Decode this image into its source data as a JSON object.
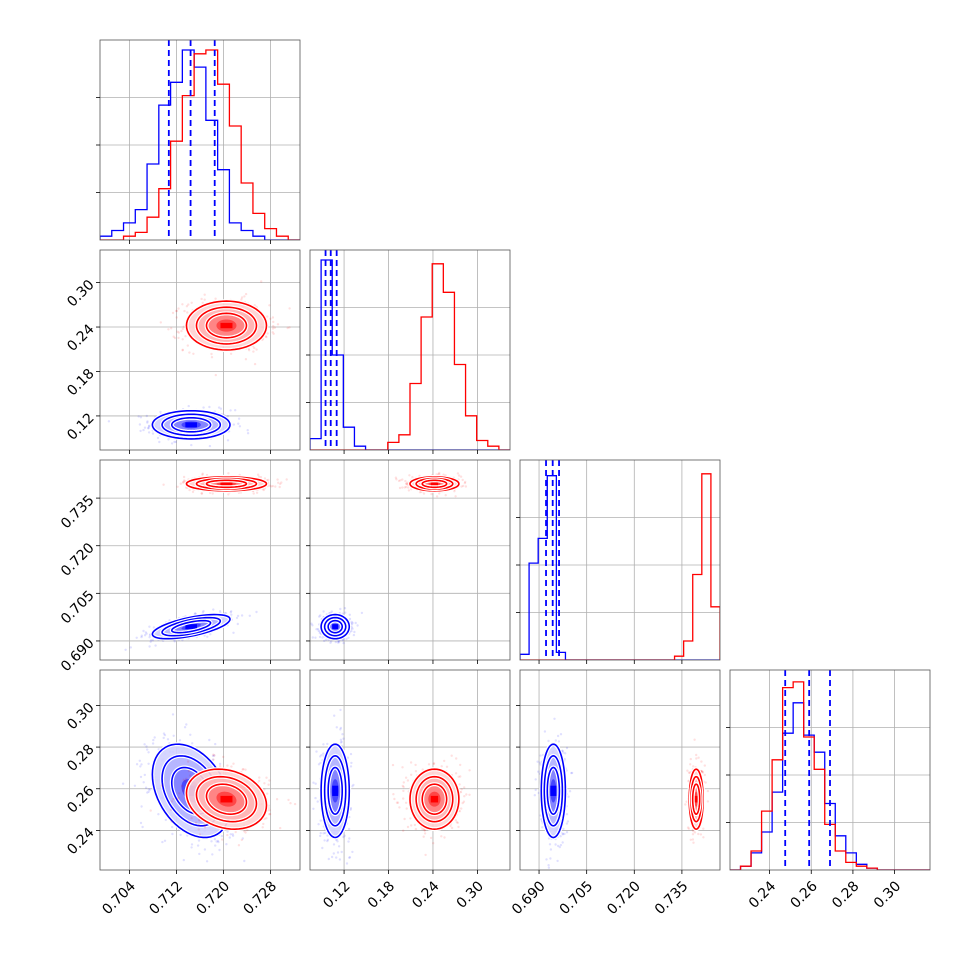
{
  "chart_data": {
    "type": "corner",
    "grid": true,
    "colors": {
      "A": "#0000ff",
      "B": "#ff0000"
    },
    "parameters": [
      {
        "range": [
          0.699,
          0.733
        ],
        "ticks": [
          "0.704",
          "0.712",
          "0.720",
          "0.728"
        ]
      },
      {
        "range": [
          0.074,
          0.344
        ],
        "ticks": [
          "0.12",
          "0.18",
          "0.24",
          "0.30"
        ]
      },
      {
        "range": [
          0.684,
          0.747
        ],
        "ticks": [
          "0.690",
          "0.705",
          "0.720",
          "0.735"
        ]
      },
      {
        "range": [
          0.221,
          0.317
        ],
        "ticks": [
          "0.24",
          "0.26",
          "0.28",
          "0.30"
        ]
      }
    ],
    "series": [
      {
        "key": "A",
        "color": "#0000ff",
        "mean": [
          0.7145,
          0.108,
          0.6945,
          0.259
        ],
        "sd": [
          0.0033,
          0.0095,
          0.0019,
          0.0112
        ],
        "corr": {
          "0-2": 0.62,
          "0-3": -0.35
        },
        "quantiles": [
          [
            "0.7107",
            "0.7144",
            "0.7185"
          ],
          [
            "0.095",
            "0.102",
            "0.110"
          ],
          [
            "0.6922",
            "0.6943",
            "0.6963"
          ],
          [
            "0.2475",
            "0.2590",
            "0.2690"
          ]
        ],
        "histograms": [
          {
            "lo": 0.699,
            "hi": 0.733,
            "counts": [
              0.02,
              0.05,
              0.09,
              0.16,
              0.4,
              0.71,
              0.83,
              1.0,
              0.91,
              0.63,
              0.37,
              0.09,
              0.05,
              0.02,
              0.0,
              0.0,
              0.0
            ]
          },
          {
            "lo": 0.074,
            "hi": 0.344,
            "counts": [
              0.06,
              1.0,
              0.5,
              0.12,
              0.02,
              0.0,
              0.0,
              0.0,
              0.0,
              0.0,
              0.0,
              0.0,
              0.0,
              0.0,
              0.0,
              0.0,
              0.0,
              0.0
            ]
          },
          {
            "lo": 0.684,
            "hi": 0.747,
            "counts": [
              0.03,
              0.51,
              0.64,
              0.97,
              0.04,
              0.0,
              0.0,
              0.0,
              0.0,
              0.0,
              0.0,
              0.0,
              0.0,
              0.0,
              0.0,
              0.0,
              0.0,
              0.0,
              0.0,
              0.0,
              0.0,
              0.0
            ]
          },
          {
            "lo": 0.221,
            "hi": 0.317,
            "counts": [
              0.0,
              0.02,
              0.09,
              0.2,
              0.41,
              0.72,
              0.88,
              0.71,
              0.62,
              0.35,
              0.18,
              0.09,
              0.03,
              0.01,
              0.0,
              0.0,
              0.0,
              0.0,
              0.0
            ]
          }
        ]
      },
      {
        "key": "B",
        "color": "#ff0000",
        "mean": [
          0.7205,
          0.242,
          0.7395,
          0.255
        ],
        "sd": [
          0.0034,
          0.0165,
          0.0011,
          0.0072
        ],
        "corr": {
          "0-3": -0.2
        },
        "histograms": [
          {
            "lo": 0.699,
            "hi": 0.733,
            "counts": [
              0.0,
              0.0,
              0.02,
              0.04,
              0.12,
              0.27,
              0.52,
              0.76,
              0.98,
              1.0,
              0.82,
              0.6,
              0.3,
              0.14,
              0.06,
              0.02,
              0.0
            ]
          },
          {
            "lo": 0.074,
            "hi": 0.344,
            "counts": [
              0.0,
              0.0,
              0.0,
              0.0,
              0.0,
              0.0,
              0.0,
              0.04,
              0.08,
              0.35,
              0.7,
              0.98,
              0.83,
              0.45,
              0.18,
              0.05,
              0.02,
              0.0
            ]
          },
          {
            "lo": 0.684,
            "hi": 0.747,
            "counts": [
              0.0,
              0.0,
              0.0,
              0.0,
              0.0,
              0.0,
              0.0,
              0.0,
              0.0,
              0.0,
              0.0,
              0.0,
              0.0,
              0.0,
              0.0,
              0.0,
              0.0,
              0.02,
              0.1,
              0.45,
              0.98,
              0.28
            ]
          },
          {
            "lo": 0.221,
            "hi": 0.317,
            "counts": [
              0.0,
              0.02,
              0.1,
              0.31,
              0.58,
              0.96,
              0.99,
              0.7,
              0.53,
              0.24,
              0.1,
              0.04,
              0.02,
              0.01,
              0.0,
              0.0,
              0.0,
              0.0,
              0.0
            ]
          }
        ]
      }
    ]
  }
}
